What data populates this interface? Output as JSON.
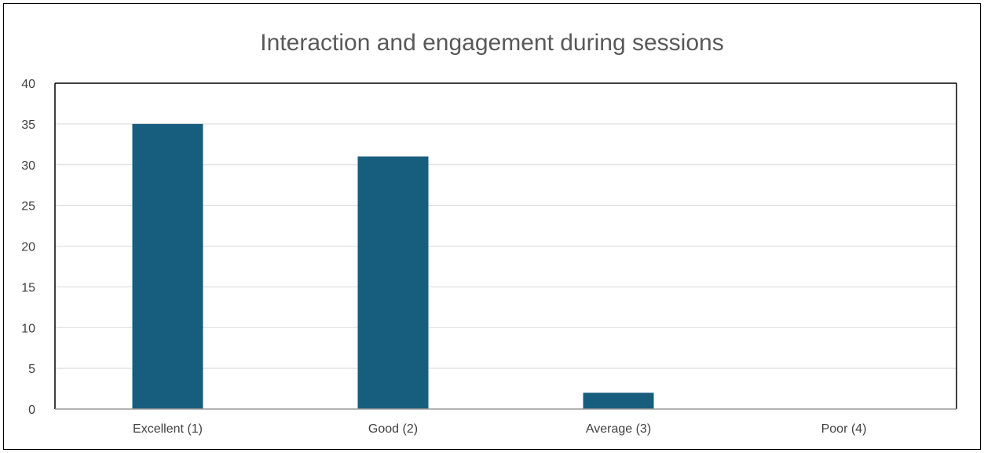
{
  "chart_data": {
    "type": "bar",
    "title": "Interaction and engagement during sessions",
    "categories": [
      "Excellent (1)",
      "Good (2)",
      "Average (3)",
      "Poor (4)"
    ],
    "values": [
      35,
      31,
      2,
      0
    ],
    "xlabel": "",
    "ylabel": "",
    "ylim": [
      0,
      40
    ],
    "yticks": [
      0,
      5,
      10,
      15,
      20,
      25,
      30,
      35,
      40
    ],
    "grid": true,
    "legend": "none",
    "bar_color": "#175E7E",
    "grid_color": "#D9D9D9",
    "axis_color": "#000000"
  }
}
